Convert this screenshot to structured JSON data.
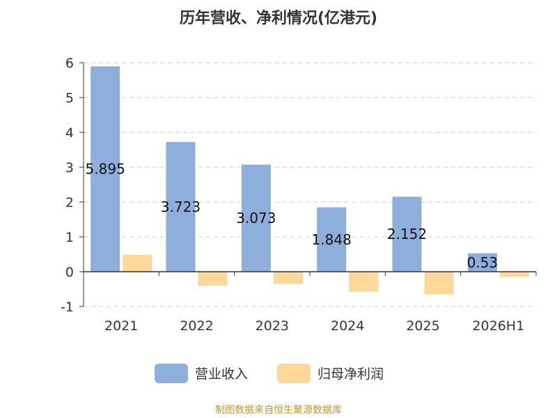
{
  "chart_data": {
    "type": "bar",
    "title": "历年营收、净利情况(亿港元)",
    "categories": [
      "2021",
      "2022",
      "2023",
      "2024",
      "2025",
      "2026H1"
    ],
    "series": [
      {
        "name": "营业收入",
        "color": "#8eafdc",
        "values": [
          5.895,
          3.723,
          3.073,
          1.848,
          2.152,
          0.53
        ],
        "labels": [
          "5.895",
          "3.723",
          "3.073",
          "1.848",
          "2.152",
          "0.53"
        ]
      },
      {
        "name": "归母净利润",
        "color": "#fdd898",
        "values": [
          0.48,
          -0.4,
          -0.35,
          -0.57,
          -0.65,
          -0.15
        ]
      }
    ],
    "ylim": [
      -1,
      6
    ],
    "yticks": [
      "-1",
      "0",
      "1",
      "2",
      "3",
      "4",
      "5",
      "6"
    ],
    "grid": true,
    "legend_position": "bottom"
  },
  "source_text": "制图数据来自恒生聚源数据库"
}
